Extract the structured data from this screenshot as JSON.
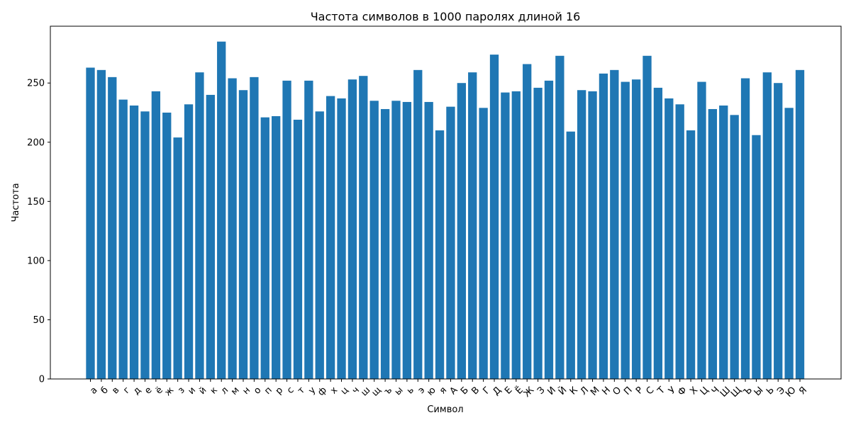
{
  "chart_data": {
    "type": "bar",
    "title": "Частота символов в 1000 паролях длиной 16",
    "xlabel": "Символ",
    "ylabel": "Частота",
    "ylim": [
      0,
      298
    ],
    "yticks": [
      0,
      50,
      100,
      150,
      200,
      250
    ],
    "grid": false,
    "bar_color": "#1f77b4",
    "categories": [
      "а",
      "б",
      "в",
      "г",
      "д",
      "е",
      "ё",
      "ж",
      "з",
      "и",
      "й",
      "к",
      "л",
      "м",
      "н",
      "о",
      "п",
      "р",
      "с",
      "т",
      "у",
      "ф",
      "х",
      "ц",
      "ч",
      "ш",
      "щ",
      "ъ",
      "ы",
      "ь",
      "э",
      "ю",
      "я",
      "А",
      "Б",
      "В",
      "Г",
      "Д",
      "Е",
      "Ё",
      "Ж",
      "З",
      "И",
      "Й",
      "К",
      "Л",
      "М",
      "Н",
      "О",
      "П",
      "Р",
      "С",
      "Т",
      "У",
      "Ф",
      "Х",
      "Ц",
      "Ч",
      "Ш",
      "Щ",
      "Ъ",
      "Ы",
      "Ь",
      "Э",
      "Ю",
      "Я"
    ],
    "values": [
      263,
      261,
      255,
      236,
      231,
      226,
      243,
      225,
      204,
      232,
      259,
      240,
      285,
      254,
      244,
      255,
      221,
      222,
      252,
      219,
      252,
      226,
      239,
      237,
      253,
      256,
      235,
      228,
      235,
      234,
      261,
      234,
      210,
      230,
      250,
      259,
      229,
      274,
      242,
      243,
      266,
      246,
      252,
      273,
      209,
      244,
      243,
      258,
      261,
      251,
      253,
      273,
      246,
      237,
      232,
      210,
      251,
      228,
      231,
      223,
      254,
      206,
      259,
      250,
      229,
      261
    ]
  }
}
